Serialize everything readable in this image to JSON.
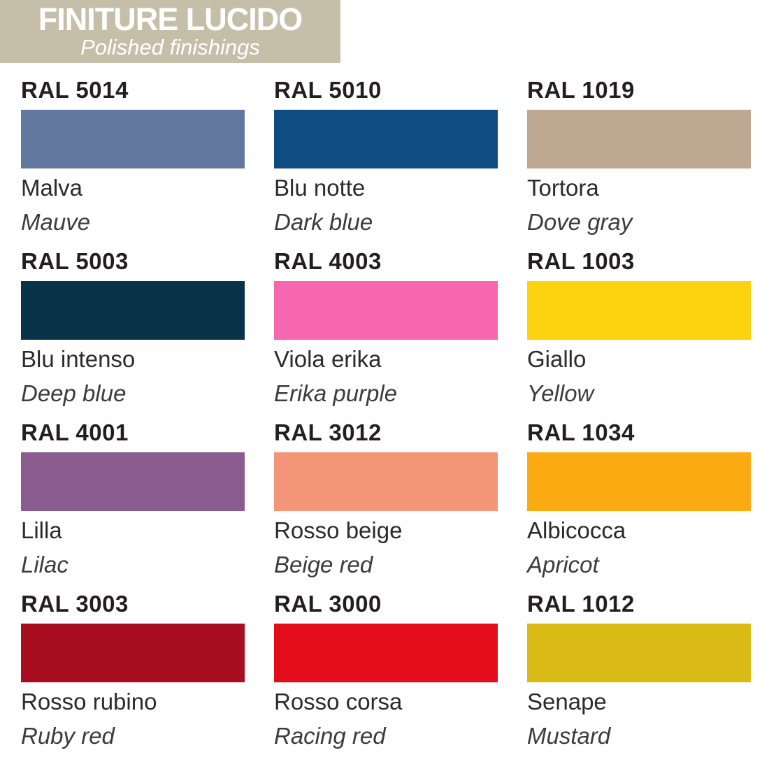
{
  "header": {
    "title": "FINITURE LUCIDO",
    "subtitle": "Polished finishings",
    "background_color": "#c5bfaa",
    "text_color": "#ffffff"
  },
  "swatches": [
    {
      "code": "RAL 5014",
      "name_it": "Malva",
      "name_en": "Mauve",
      "hex": "#63789e"
    },
    {
      "code": "RAL 5010",
      "name_it": "Blu notte",
      "name_en": "Dark blue",
      "hex": "#0e4c82"
    },
    {
      "code": "RAL 1019",
      "name_it": "Tortora",
      "name_en": "Dove gray",
      "hex": "#bfa891"
    },
    {
      "code": "RAL 5003",
      "name_it": "Blu intenso",
      "name_en": "Deep blue",
      "hex": "#083349"
    },
    {
      "code": "RAL 4003",
      "name_it": "Viola erika",
      "name_en": "Erika purple",
      "hex": "#f767b0"
    },
    {
      "code": "RAL 1003",
      "name_it": "Giallo",
      "name_en": "Yellow",
      "hex": "#fdd20e"
    },
    {
      "code": "RAL 4001",
      "name_it": "Lilla",
      "name_en": "Lilac",
      "hex": "#8a5c90"
    },
    {
      "code": "RAL 3012",
      "name_it": "Rosso beige",
      "name_en": "Beige red",
      "hex": "#f39678"
    },
    {
      "code": "RAL 1034",
      "name_it": "Albicocca",
      "name_en": "Apricot",
      "hex": "#fbaa12"
    },
    {
      "code": "RAL 3003",
      "name_it": "Rosso rubino",
      "name_en": "Ruby red",
      "hex": "#a90e20"
    },
    {
      "code": "RAL 3000",
      "name_it": "Rosso corsa",
      "name_en": "Racing red",
      "hex": "#e30d1c"
    },
    {
      "code": "RAL 1012",
      "name_it": "Senape",
      "name_en": "Mustard",
      "hex": "#d9ba14"
    }
  ]
}
